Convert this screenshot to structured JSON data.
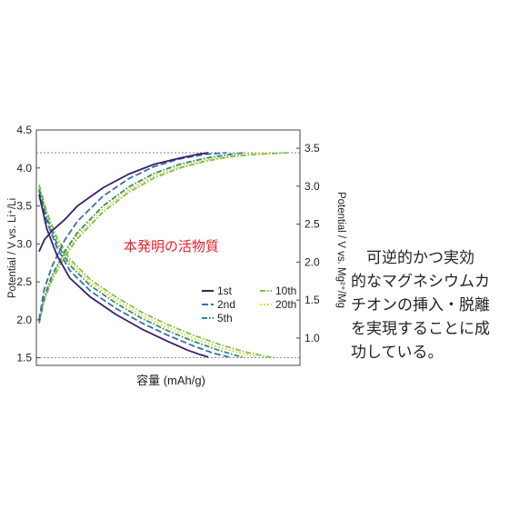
{
  "caption_lines": [
    "　可逆的かつ実効",
    "的なマグネシウムカ",
    "チオンの挿入・脱離",
    "を実現することに成",
    "功している。"
  ],
  "chart_data": {
    "type": "line",
    "title": "",
    "annotation": "本発明の活物質",
    "xlabel": "容量 (mAh/g)",
    "ylabel_left": "Potential / V vs. Li⁺/Li",
    "ylabel_right": "Potential / V vs. Mg²⁺/Mg",
    "ylim_left": [
      1.4,
      4.5
    ],
    "ylim_right": [
      0.64,
      3.74
    ],
    "yticks_left": [
      "1.5",
      "2.0",
      "2.5",
      "3.0",
      "3.5",
      "4.0",
      "4.5"
    ],
    "yticks_right": [
      "1.0",
      "1.5",
      "2.0",
      "2.5",
      "3.0",
      "3.5"
    ],
    "xlim": [
      0,
      1
    ],
    "x_ticks_labeled": false,
    "reference_lines_left_V": [
      4.2,
      1.5
    ],
    "legend_position": "bottom-right",
    "series": [
      {
        "name": "1st",
        "color": "#3b1f6e",
        "dash": "solid",
        "charge": [
          [
            0.0,
            2.9
          ],
          [
            0.02,
            3.05
          ],
          [
            0.05,
            3.17
          ],
          [
            0.1,
            3.32
          ],
          [
            0.15,
            3.5
          ],
          [
            0.25,
            3.74
          ],
          [
            0.35,
            3.92
          ],
          [
            0.45,
            4.05
          ],
          [
            0.55,
            4.13
          ],
          [
            0.62,
            4.18
          ],
          [
            0.66,
            4.2
          ]
        ],
        "discharge": [
          [
            0.0,
            3.65
          ],
          [
            0.03,
            3.2
          ],
          [
            0.07,
            2.85
          ],
          [
            0.12,
            2.55
          ],
          [
            0.2,
            2.3
          ],
          [
            0.3,
            2.07
          ],
          [
            0.4,
            1.88
          ],
          [
            0.5,
            1.72
          ],
          [
            0.58,
            1.6
          ],
          [
            0.63,
            1.54
          ],
          [
            0.66,
            1.51
          ]
        ]
      },
      {
        "name": "2nd",
        "color": "#3a6ea5",
        "dash": "dash",
        "charge": [
          [
            0.0,
            2.0
          ],
          [
            0.02,
            2.4
          ],
          [
            0.05,
            2.7
          ],
          [
            0.1,
            3.05
          ],
          [
            0.15,
            3.3
          ],
          [
            0.25,
            3.63
          ],
          [
            0.35,
            3.86
          ],
          [
            0.45,
            4.02
          ],
          [
            0.55,
            4.12
          ],
          [
            0.65,
            4.18
          ],
          [
            0.73,
            4.2
          ]
        ],
        "discharge": [
          [
            0.0,
            3.7
          ],
          [
            0.03,
            3.3
          ],
          [
            0.07,
            2.95
          ],
          [
            0.12,
            2.65
          ],
          [
            0.2,
            2.38
          ],
          [
            0.3,
            2.15
          ],
          [
            0.4,
            1.96
          ],
          [
            0.5,
            1.8
          ],
          [
            0.6,
            1.66
          ],
          [
            0.68,
            1.56
          ],
          [
            0.74,
            1.51
          ]
        ]
      },
      {
        "name": "5th",
        "color": "#2a8a8a",
        "dash": "dashdot",
        "charge": [
          [
            0.0,
            1.97
          ],
          [
            0.02,
            2.3
          ],
          [
            0.05,
            2.58
          ],
          [
            0.1,
            2.9
          ],
          [
            0.15,
            3.15
          ],
          [
            0.25,
            3.5
          ],
          [
            0.35,
            3.75
          ],
          [
            0.45,
            3.93
          ],
          [
            0.55,
            4.05
          ],
          [
            0.65,
            4.13
          ],
          [
            0.75,
            4.18
          ],
          [
            0.8,
            4.2
          ]
        ],
        "discharge": [
          [
            0.0,
            3.72
          ],
          [
            0.03,
            3.35
          ],
          [
            0.07,
            3.0
          ],
          [
            0.12,
            2.72
          ],
          [
            0.2,
            2.45
          ],
          [
            0.3,
            2.22
          ],
          [
            0.4,
            2.02
          ],
          [
            0.5,
            1.86
          ],
          [
            0.6,
            1.72
          ],
          [
            0.7,
            1.6
          ],
          [
            0.78,
            1.52
          ],
          [
            0.8,
            1.51
          ]
        ]
      },
      {
        "name": "10th",
        "color": "#7dc242",
        "dash": "dashdot",
        "charge": [
          [
            0.0,
            1.95
          ],
          [
            0.02,
            2.25
          ],
          [
            0.05,
            2.52
          ],
          [
            0.1,
            2.83
          ],
          [
            0.15,
            3.07
          ],
          [
            0.25,
            3.42
          ],
          [
            0.35,
            3.68
          ],
          [
            0.45,
            3.87
          ],
          [
            0.55,
            4.0
          ],
          [
            0.65,
            4.09
          ],
          [
            0.75,
            4.15
          ],
          [
            0.85,
            4.18
          ],
          [
            0.97,
            4.2
          ]
        ],
        "discharge": [
          [
            0.0,
            3.78
          ],
          [
            0.03,
            3.42
          ],
          [
            0.07,
            3.08
          ],
          [
            0.12,
            2.8
          ],
          [
            0.2,
            2.53
          ],
          [
            0.3,
            2.3
          ],
          [
            0.4,
            2.1
          ],
          [
            0.5,
            1.94
          ],
          [
            0.6,
            1.8
          ],
          [
            0.7,
            1.68
          ],
          [
            0.8,
            1.58
          ],
          [
            0.88,
            1.52
          ],
          [
            0.92,
            1.5
          ]
        ]
      },
      {
        "name": "20th",
        "color": "#f0d33a",
        "dash": "dot",
        "charge": [
          [
            0.0,
            1.96
          ],
          [
            0.02,
            2.28
          ],
          [
            0.05,
            2.56
          ],
          [
            0.1,
            2.87
          ],
          [
            0.15,
            3.11
          ],
          [
            0.25,
            3.46
          ],
          [
            0.35,
            3.71
          ],
          [
            0.45,
            3.9
          ],
          [
            0.55,
            4.02
          ],
          [
            0.65,
            4.11
          ],
          [
            0.75,
            4.16
          ],
          [
            0.85,
            4.19
          ],
          [
            0.9,
            4.2
          ]
        ],
        "discharge": [
          [
            0.0,
            3.75
          ],
          [
            0.03,
            3.38
          ],
          [
            0.07,
            3.04
          ],
          [
            0.12,
            2.76
          ],
          [
            0.2,
            2.49
          ],
          [
            0.3,
            2.26
          ],
          [
            0.4,
            2.06
          ],
          [
            0.5,
            1.9
          ],
          [
            0.6,
            1.76
          ],
          [
            0.7,
            1.64
          ],
          [
            0.8,
            1.55
          ],
          [
            0.85,
            1.51
          ]
        ]
      }
    ]
  }
}
